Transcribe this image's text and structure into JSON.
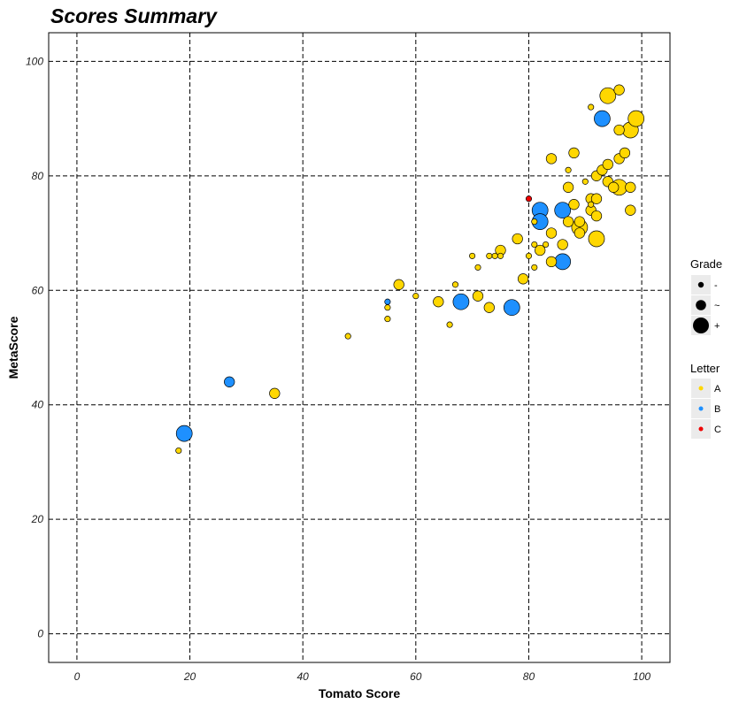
{
  "chart_data": {
    "type": "scatter",
    "title": "Scores Summary",
    "xlabel": "Tomato Score",
    "ylabel": "MetaScore",
    "xlim": [
      -5,
      105
    ],
    "ylim": [
      -5,
      105
    ],
    "x_ticks": [
      0,
      20,
      40,
      60,
      80,
      100
    ],
    "y_ticks": [
      0,
      20,
      40,
      60,
      80,
      100
    ],
    "grid": true,
    "legend_position": "right",
    "size_legend": {
      "title": "Grade",
      "entries": [
        {
          "label": "-",
          "size": 1
        },
        {
          "label": "~",
          "size": 2
        },
        {
          "label": "+",
          "size": 3
        }
      ]
    },
    "color_legend": {
      "title": "Letter",
      "entries": [
        {
          "label": "A",
          "color": "#FFD700"
        },
        {
          "label": "B",
          "color": "#1E90FF"
        },
        {
          "label": "C",
          "color": "#EE0000"
        }
      ]
    },
    "points": [
      {
        "x": 18,
        "y": 32,
        "letter": "A",
        "grade": 1
      },
      {
        "x": 19,
        "y": 35,
        "letter": "B",
        "grade": 3
      },
      {
        "x": 27,
        "y": 44,
        "letter": "B",
        "grade": 2
      },
      {
        "x": 35,
        "y": 42,
        "letter": "A",
        "grade": 2
      },
      {
        "x": 48,
        "y": 52,
        "letter": "A",
        "grade": 1
      },
      {
        "x": 55,
        "y": 58,
        "letter": "B",
        "grade": 1
      },
      {
        "x": 55,
        "y": 57,
        "letter": "A",
        "grade": 1
      },
      {
        "x": 55,
        "y": 55,
        "letter": "A",
        "grade": 1
      },
      {
        "x": 57,
        "y": 61,
        "letter": "A",
        "grade": 2
      },
      {
        "x": 60,
        "y": 59,
        "letter": "A",
        "grade": 1
      },
      {
        "x": 64,
        "y": 58,
        "letter": "A",
        "grade": 2
      },
      {
        "x": 66,
        "y": 54,
        "letter": "A",
        "grade": 1
      },
      {
        "x": 67,
        "y": 61,
        "letter": "A",
        "grade": 1
      },
      {
        "x": 68,
        "y": 58,
        "letter": "B",
        "grade": 3
      },
      {
        "x": 70,
        "y": 66,
        "letter": "A",
        "grade": 1
      },
      {
        "x": 71,
        "y": 64,
        "letter": "A",
        "grade": 1
      },
      {
        "x": 71,
        "y": 59,
        "letter": "A",
        "grade": 2
      },
      {
        "x": 73,
        "y": 57,
        "letter": "A",
        "grade": 2
      },
      {
        "x": 73,
        "y": 66,
        "letter": "A",
        "grade": 1
      },
      {
        "x": 74,
        "y": 66,
        "letter": "A",
        "grade": 1
      },
      {
        "x": 75,
        "y": 67,
        "letter": "A",
        "grade": 2
      },
      {
        "x": 75,
        "y": 66,
        "letter": "A",
        "grade": 1
      },
      {
        "x": 77,
        "y": 57,
        "letter": "B",
        "grade": 3
      },
      {
        "x": 78,
        "y": 69,
        "letter": "A",
        "grade": 2
      },
      {
        "x": 79,
        "y": 62,
        "letter": "A",
        "grade": 2
      },
      {
        "x": 80,
        "y": 76,
        "letter": "C",
        "grade": 1
      },
      {
        "x": 80,
        "y": 66,
        "letter": "A",
        "grade": 1
      },
      {
        "x": 81,
        "y": 72,
        "letter": "A",
        "grade": 1
      },
      {
        "x": 81,
        "y": 68,
        "letter": "A",
        "grade": 1
      },
      {
        "x": 81,
        "y": 64,
        "letter": "A",
        "grade": 1
      },
      {
        "x": 82,
        "y": 74,
        "letter": "B",
        "grade": 3
      },
      {
        "x": 82,
        "y": 72,
        "letter": "B",
        "grade": 3
      },
      {
        "x": 82,
        "y": 67,
        "letter": "A",
        "grade": 2
      },
      {
        "x": 83,
        "y": 68,
        "letter": "A",
        "grade": 1
      },
      {
        "x": 84,
        "y": 83,
        "letter": "A",
        "grade": 2
      },
      {
        "x": 84,
        "y": 70,
        "letter": "A",
        "grade": 2
      },
      {
        "x": 84,
        "y": 65,
        "letter": "A",
        "grade": 2
      },
      {
        "x": 86,
        "y": 74,
        "letter": "B",
        "grade": 3
      },
      {
        "x": 86,
        "y": 68,
        "letter": "A",
        "grade": 2
      },
      {
        "x": 86,
        "y": 65,
        "letter": "B",
        "grade": 3
      },
      {
        "x": 87,
        "y": 81,
        "letter": "A",
        "grade": 1
      },
      {
        "x": 87,
        "y": 78,
        "letter": "A",
        "grade": 2
      },
      {
        "x": 87,
        "y": 72,
        "letter": "A",
        "grade": 2
      },
      {
        "x": 88,
        "y": 84,
        "letter": "A",
        "grade": 2
      },
      {
        "x": 88,
        "y": 75,
        "letter": "A",
        "grade": 2
      },
      {
        "x": 89,
        "y": 72,
        "letter": "A",
        "grade": 2
      },
      {
        "x": 89,
        "y": 71,
        "letter": "A",
        "grade": 3
      },
      {
        "x": 89,
        "y": 70,
        "letter": "A",
        "grade": 2
      },
      {
        "x": 90,
        "y": 79,
        "letter": "A",
        "grade": 1
      },
      {
        "x": 91,
        "y": 92,
        "letter": "A",
        "grade": 1
      },
      {
        "x": 91,
        "y": 76,
        "letter": "A",
        "grade": 2
      },
      {
        "x": 91,
        "y": 75,
        "letter": "A",
        "grade": 1
      },
      {
        "x": 91,
        "y": 74,
        "letter": "A",
        "grade": 2
      },
      {
        "x": 92,
        "y": 80,
        "letter": "A",
        "grade": 2
      },
      {
        "x": 92,
        "y": 76,
        "letter": "A",
        "grade": 2
      },
      {
        "x": 92,
        "y": 73,
        "letter": "A",
        "grade": 2
      },
      {
        "x": 92,
        "y": 69,
        "letter": "A",
        "grade": 3
      },
      {
        "x": 93,
        "y": 90,
        "letter": "B",
        "grade": 3
      },
      {
        "x": 93,
        "y": 81,
        "letter": "A",
        "grade": 2
      },
      {
        "x": 94,
        "y": 94,
        "letter": "A",
        "grade": 3
      },
      {
        "x": 94,
        "y": 82,
        "letter": "A",
        "grade": 2
      },
      {
        "x": 94,
        "y": 79,
        "letter": "A",
        "grade": 2
      },
      {
        "x": 95,
        "y": 78,
        "letter": "A",
        "grade": 2
      },
      {
        "x": 96,
        "y": 95,
        "letter": "A",
        "grade": 2
      },
      {
        "x": 96,
        "y": 88,
        "letter": "A",
        "grade": 2
      },
      {
        "x": 96,
        "y": 83,
        "letter": "A",
        "grade": 2
      },
      {
        "x": 96,
        "y": 78,
        "letter": "A",
        "grade": 3
      },
      {
        "x": 97,
        "y": 84,
        "letter": "A",
        "grade": 2
      },
      {
        "x": 98,
        "y": 88,
        "letter": "A",
        "grade": 3
      },
      {
        "x": 98,
        "y": 78,
        "letter": "A",
        "grade": 2
      },
      {
        "x": 98,
        "y": 74,
        "letter": "A",
        "grade": 2
      },
      {
        "x": 99,
        "y": 90,
        "letter": "A",
        "grade": 3
      }
    ]
  }
}
